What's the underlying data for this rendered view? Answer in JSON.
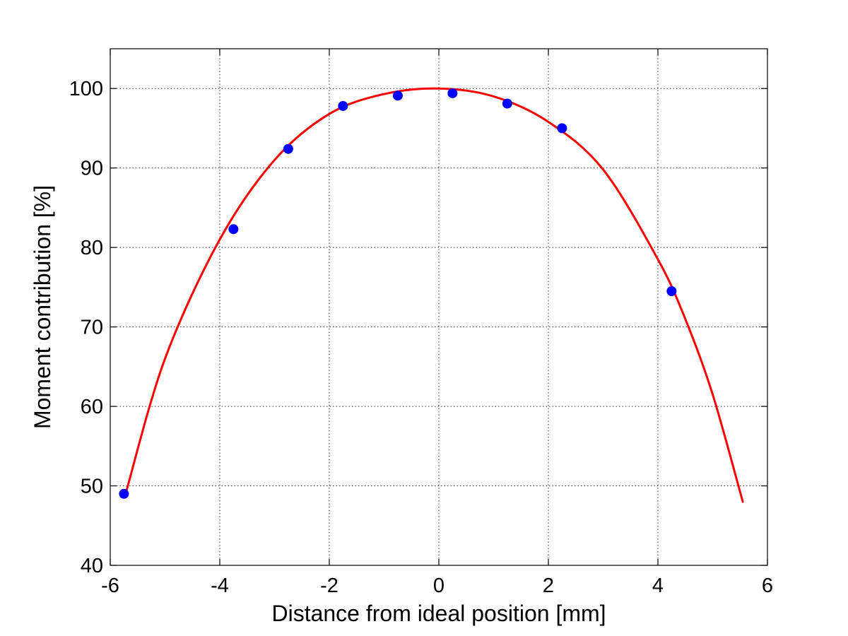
{
  "chart_data": {
    "type": "scatter",
    "title": "",
    "xlabel": "Distance from ideal position [mm]",
    "ylabel": "Moment contribution [%]",
    "xlim": [
      -6,
      6
    ],
    "ylim": [
      40,
      105
    ],
    "x_ticks": [
      -6,
      -4,
      -2,
      0,
      2,
      4,
      6
    ],
    "y_ticks": [
      40,
      50,
      60,
      70,
      80,
      90,
      100
    ],
    "x_tick_labels": [
      "-6",
      "-4",
      "-2",
      "0",
      "2",
      "4",
      "6"
    ],
    "y_tick_labels": [
      "40",
      "50",
      "60",
      "70",
      "80",
      "90",
      "100"
    ],
    "grid": true,
    "legend": "none",
    "series": [
      {
        "kind": "points",
        "color": "#0000ff",
        "x": [
          -5.75,
          -3.75,
          -2.75,
          -1.75,
          -0.75,
          0.25,
          1.25,
          2.25,
          4.25
        ],
        "y": [
          49.0,
          82.3,
          92.4,
          97.8,
          99.1,
          99.4,
          98.1,
          95.0,
          74.5
        ]
      },
      {
        "kind": "fit-curve",
        "color": "#ff0000",
        "x_range": [
          -5.7,
          5.55
        ],
        "peak_x": 0.0,
        "peak_y": 100.0,
        "curve_x": [
          -5.7,
          -5.0,
          -4.0,
          -3.0,
          -2.0,
          -1.0,
          0.0,
          1.0,
          2.0,
          3.0,
          4.0,
          4.5,
          5.0,
          5.55
        ],
        "curve_y": [
          49.5,
          66.0,
          81.0,
          91.0,
          96.8,
          99.3,
          100.0,
          99.0,
          95.8,
          89.8,
          78.5,
          71.0,
          61.5,
          48.0
        ]
      }
    ]
  }
}
